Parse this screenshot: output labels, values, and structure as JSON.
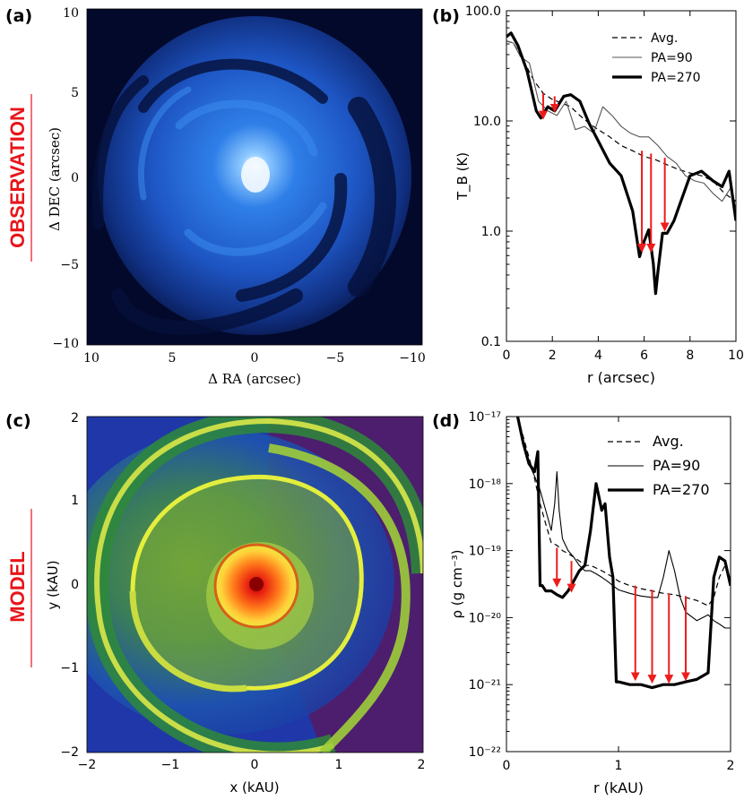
{
  "side_labels": {
    "observation": "OBSERVATION",
    "model": "MODEL"
  },
  "panels": {
    "a": {
      "tag": "(a)",
      "xlabel": "Δ RA (arcsec)",
      "ylabel": "Δ DEC (arcsec)",
      "xticks": [
        "10",
        "5",
        "0",
        "−5",
        "−10"
      ],
      "yticks": [
        "10",
        "5",
        "0",
        "−5",
        "−10"
      ],
      "colormap": "blue (dark navy → white)"
    },
    "b": {
      "tag": "(b)"
    },
    "c": {
      "tag": "(c)",
      "xlabel": "x (kAU)",
      "ylabel": "y (kAU)",
      "xticks": [
        "−2",
        "−1",
        "0",
        "1",
        "2"
      ],
      "yticks": [
        "2",
        "1",
        "0",
        "−1",
        "−2"
      ],
      "colormap": "purple → blue → green → yellow → red"
    },
    "d": {
      "tag": "(d)"
    }
  },
  "chart_data": [
    {
      "panel": "b",
      "type": "line",
      "xlabel": "r (arcsec)",
      "ylabel": "T_B (K)",
      "xlim": [
        0,
        10
      ],
      "ylim": [
        0.1,
        200
      ],
      "yscale": "log",
      "xticks": [
        "0",
        "2",
        "4",
        "6",
        "8",
        "10"
      ],
      "yticks": [
        "0.1",
        "1.0",
        "10.0",
        "100.0"
      ],
      "legend_position": "top-right",
      "series": [
        {
          "name": "Avg.",
          "style": "dashed",
          "color": "#000000",
          "x": [
            0,
            0.3,
            0.8,
            1.2,
            1.6,
            2.0,
            2.4,
            2.8,
            3.2,
            3.6,
            4.0,
            4.5,
            5.0,
            5.5,
            6.0,
            6.5,
            7.0,
            7.5,
            8.0,
            8.5,
            9.0,
            9.5,
            10
          ],
          "y": [
            100,
            95,
            60,
            40,
            30,
            26,
            24,
            22,
            18,
            15,
            13,
            11,
            9,
            8,
            7,
            6.5,
            5.8,
            5.2,
            4.8,
            4.5,
            4.0,
            3.0,
            2.5
          ]
        },
        {
          "name": "PA=90",
          "style": "thin",
          "color": "#555555",
          "x": [
            0,
            0.3,
            0.6,
            1.0,
            1.4,
            1.8,
            2.2,
            2.6,
            3.0,
            3.4,
            3.8,
            4.2,
            4.6,
            5.0,
            5.4,
            5.8,
            6.2,
            6.6,
            7.0,
            7.4,
            7.8,
            8.2,
            8.6,
            9.0,
            9.4,
            9.8,
            10
          ],
          "y": [
            100,
            95,
            70,
            60,
            25,
            20,
            18,
            25,
            13,
            14,
            12,
            22,
            18,
            14,
            12,
            11,
            11,
            9,
            7,
            6,
            4.5,
            4,
            3.8,
            3,
            2.5,
            3.5,
            2
          ]
        },
        {
          "name": "PA=270",
          "style": "thick",
          "color": "#000000",
          "x": [
            0,
            0.2,
            0.5,
            0.9,
            1.3,
            1.5,
            1.8,
            2.1,
            2.5,
            2.8,
            3.2,
            3.6,
            4.0,
            4.5,
            5.0,
            5.5,
            5.8,
            6.0,
            6.2,
            6.4,
            6.5,
            6.6,
            6.8,
            7.0,
            7.3,
            7.6,
            8.0,
            8.5,
            9.0,
            9.4,
            9.7,
            10
          ],
          "y": [
            110,
            120,
            90,
            50,
            20,
            17,
            22,
            20,
            28,
            29,
            25,
            15,
            10,
            6,
            4.5,
            2,
            0.7,
            1.0,
            1.3,
            0.6,
            0.3,
            0.5,
            1.2,
            1.2,
            1.6,
            2.5,
            4.5,
            5,
            4,
            3.5,
            5,
            1.6
          ]
        }
      ],
      "arrows": [
        {
          "x": 1.6,
          "y_from": 30,
          "y_to": 17
        },
        {
          "x": 2.1,
          "y_from": 28,
          "y_to": 20
        },
        {
          "x": 5.9,
          "y_from": 8,
          "y_to": 0.8
        },
        {
          "x": 6.3,
          "y_from": 7.5,
          "y_to": 0.8
        },
        {
          "x": 6.9,
          "y_from": 6.8,
          "y_to": 1.3
        }
      ]
    },
    {
      "panel": "d",
      "type": "line",
      "xlabel": "r (kAU)",
      "ylabel": "ρ (g cm⁻³)",
      "xlim": [
        0,
        2
      ],
      "ylim": [
        1e-22,
        1e-17
      ],
      "yscale": "log",
      "xticks": [
        "0",
        "1",
        "2"
      ],
      "yticks": [
        "10⁻²²",
        "10⁻²¹",
        "10⁻²⁰",
        "10⁻¹⁹",
        "10⁻¹⁸",
        "10⁻¹⁷"
      ],
      "legend_position": "top-right",
      "series": [
        {
          "name": "Avg.",
          "style": "dashed",
          "color": "#000000",
          "x": [
            0.1,
            0.15,
            0.2,
            0.25,
            0.3,
            0.35,
            0.4,
            0.45,
            0.5,
            0.55,
            0.6,
            0.65,
            0.7,
            0.75,
            0.8,
            0.85,
            0.9,
            0.95,
            1.0,
            1.1,
            1.2,
            1.3,
            1.4,
            1.5,
            1.6,
            1.7,
            1.8,
            1.85,
            1.9,
            1.95,
            2.0
          ],
          "y": [
            1e-17,
            5e-18,
            2.5e-18,
            1.2e-18,
            5e-19,
            2.5e-19,
            1.3e-19,
            1.2e-19,
            1e-19,
            9e-20,
            8e-20,
            7e-20,
            6e-20,
            6e-20,
            5.5e-20,
            5e-20,
            4.5e-20,
            4e-20,
            3.5e-20,
            3e-20,
            2.7e-20,
            2.5e-20,
            2.3e-20,
            2.2e-20,
            2e-20,
            1.8e-20,
            1.5e-20,
            2e-20,
            4e-20,
            6e-20,
            3e-20
          ]
        },
        {
          "name": "PA=90",
          "style": "thin",
          "color": "#000000",
          "x": [
            0.1,
            0.15,
            0.2,
            0.25,
            0.3,
            0.35,
            0.4,
            0.43,
            0.45,
            0.47,
            0.5,
            0.55,
            0.6,
            0.65,
            0.7,
            0.75,
            0.8,
            0.85,
            0.9,
            0.95,
            1.0,
            1.1,
            1.2,
            1.3,
            1.35,
            1.4,
            1.45,
            1.5,
            1.55,
            1.6,
            1.7,
            1.8,
            1.85,
            1.9,
            1.95,
            2.0
          ],
          "y": [
            1e-17,
            4e-18,
            2e-18,
            1.3e-18,
            8e-19,
            4e-19,
            2e-19,
            5e-19,
            1.5e-18,
            4e-19,
            1.5e-19,
            1e-19,
            8e-20,
            6e-20,
            5e-20,
            5e-20,
            4.5e-20,
            4e-20,
            3.5e-20,
            3e-20,
            2.6e-20,
            2.3e-20,
            2.1e-20,
            2e-20,
            2e-20,
            4e-20,
            1e-19,
            5e-20,
            2e-20,
            1.2e-20,
            9e-21,
            1.1e-20,
            9e-21,
            8e-21,
            7e-21,
            7e-21
          ]
        },
        {
          "name": "PA=270",
          "style": "thick",
          "color": "#000000",
          "x": [
            0.1,
            0.15,
            0.2,
            0.25,
            0.28,
            0.3,
            0.32,
            0.35,
            0.4,
            0.45,
            0.5,
            0.55,
            0.6,
            0.65,
            0.7,
            0.75,
            0.8,
            0.82,
            0.85,
            0.88,
            0.9,
            0.92,
            0.95,
            0.98,
            1.0,
            1.1,
            1.2,
            1.3,
            1.4,
            1.5,
            1.6,
            1.7,
            1.8,
            1.85,
            1.9,
            1.95,
            2.0
          ],
          "y": [
            1e-17,
            4e-18,
            2e-18,
            1.5e-18,
            3e-18,
            3e-20,
            3e-20,
            2.5e-20,
            2.5e-20,
            2.2e-20,
            2e-20,
            2.5e-20,
            3.5e-20,
            5e-20,
            6e-20,
            2e-19,
            1e-18,
            7e-19,
            4e-19,
            5e-19,
            2e-19,
            8e-20,
            4e-20,
            1.1e-21,
            1.1e-21,
            1e-21,
            1e-21,
            9e-22,
            1e-21,
            1e-21,
            1.1e-21,
            1.2e-21,
            1.5e-21,
            4e-20,
            8e-20,
            7e-20,
            3e-20
          ]
        }
      ],
      "arrows": [
        {
          "x": 0.45,
          "y_from": 1.1e-19,
          "y_to": 3e-20
        },
        {
          "x": 0.58,
          "y_from": 7e-20,
          "y_to": 2.5e-20
        },
        {
          "x": 1.15,
          "y_from": 3e-20,
          "y_to": 1.2e-21
        },
        {
          "x": 1.3,
          "y_from": 2.6e-20,
          "y_to": 1.1e-21
        },
        {
          "x": 1.45,
          "y_from": 2.3e-20,
          "y_to": 1.1e-21
        },
        {
          "x": 1.6,
          "y_from": 2.1e-20,
          "y_to": 1.2e-21
        }
      ]
    }
  ]
}
